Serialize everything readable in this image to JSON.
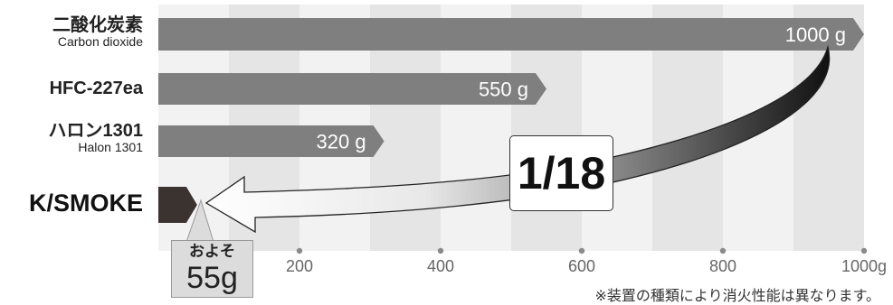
{
  "chart_data": {
    "type": "bar",
    "orientation": "horizontal",
    "categories": [
      {
        "name": "二酸化炭素",
        "sub": "Carbon dioxide"
      },
      {
        "name": "HFC-227ea",
        "sub": ""
      },
      {
        "name": "ハロン1301",
        "sub": "Halon 1301"
      },
      {
        "name": "K/SMOKE",
        "sub": ""
      }
    ],
    "values": [
      1000,
      550,
      320,
      55
    ],
    "value_labels": [
      "1000 g",
      "550 g",
      "320 g",
      ""
    ],
    "xlim": [
      0,
      1000
    ],
    "x_ticks": [
      {
        "value": 200,
        "label": "200"
      },
      {
        "value": 400,
        "label": "400"
      },
      {
        "value": 600,
        "label": "600"
      },
      {
        "value": 800,
        "label": "800"
      },
      {
        "value": 1000,
        "label": "1000g"
      }
    ],
    "colors": {
      "bar": "#7f7f7f",
      "highlight_bar": "#3b3330",
      "band_dark": "#e5e5e5",
      "band_light": "#f2f2f2"
    },
    "annotations": {
      "ratio": "1/18",
      "callout_top": "およそ",
      "callout_bottom": "55g",
      "note": "※装置の種類により消火性能は異なります。"
    }
  }
}
